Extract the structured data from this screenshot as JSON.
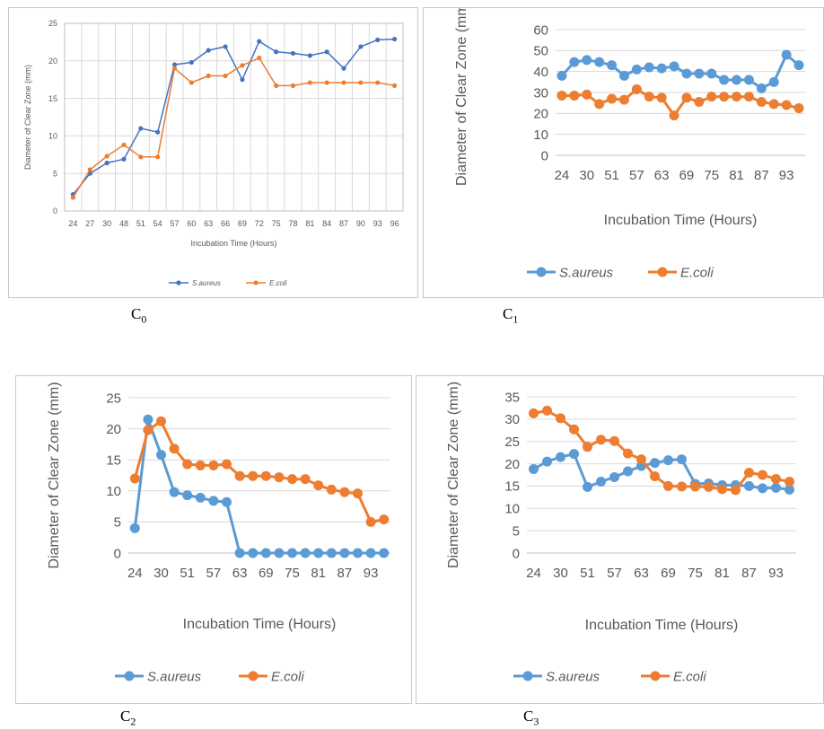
{
  "captions": [
    {
      "letter": "C",
      "sub": "0"
    },
    {
      "letter": "C",
      "sub": "1"
    },
    {
      "letter": "C",
      "sub": "2"
    },
    {
      "letter": "C",
      "sub": "3"
    }
  ],
  "chart_data": [
    {
      "type": "line",
      "xlabel": "Incubation Time (Hours)",
      "ylabel": "Diameter of Clear Zone (mm)",
      "ylim": [
        0,
        25
      ],
      "ystep": 5,
      "grid": "vertical",
      "categories": [
        "24",
        "27",
        "30",
        "48",
        "51",
        "54",
        "57",
        "60",
        "63",
        "66",
        "69",
        "72",
        "75",
        "78",
        "81",
        "84",
        "87",
        "90",
        "93",
        "96"
      ],
      "tick_labels": [
        "24",
        "27",
        "30",
        "48",
        "51",
        "54",
        "57",
        "60",
        "63",
        "66",
        "69",
        "72",
        "75",
        "78",
        "81",
        "84",
        "87",
        "90",
        "93",
        "96"
      ],
      "legend_position": "bottom",
      "series": [
        {
          "name": "S.aureus",
          "color": "#4472c4",
          "values": [
            2.2,
            5.0,
            6.4,
            6.9,
            11.0,
            10.5,
            19.5,
            19.8,
            21.4,
            21.9,
            17.5,
            22.6,
            21.2,
            21.0,
            20.7,
            21.2,
            19.0,
            21.9,
            22.8,
            22.9
          ]
        },
        {
          "name": "E.coli",
          "color": "#ed7d31",
          "values": [
            1.8,
            5.5,
            7.3,
            8.8,
            7.2,
            7.2,
            19.0,
            17.1,
            18.0,
            18.0,
            19.4,
            20.4,
            16.7,
            16.7,
            17.1,
            17.1,
            17.1,
            17.1,
            17.1,
            16.7
          ]
        }
      ]
    },
    {
      "type": "line",
      "xlabel": "Incubation Time (Hours)",
      "ylabel": "Diameter of Clear Zone (mm)",
      "ylim": [
        0,
        60
      ],
      "ystep": 10,
      "grid": "horizontal",
      "categories": [
        "24",
        "27",
        "30",
        "48",
        "51",
        "54",
        "57",
        "60",
        "63",
        "66",
        "69",
        "72",
        "75",
        "78",
        "81",
        "84",
        "87",
        "90",
        "93",
        "96"
      ],
      "tick_labels": [
        "24",
        "",
        "30",
        "",
        "51",
        "",
        "57",
        "",
        "63",
        "",
        "69",
        "",
        "75",
        "",
        "81",
        "",
        "87",
        "",
        "93",
        ""
      ],
      "legend_position": "bottom",
      "series": [
        {
          "name": "S.aureus",
          "color": "#5b9bd5",
          "values": [
            38,
            44.5,
            45.5,
            44.5,
            43,
            38,
            41,
            42,
            41.5,
            42.5,
            39,
            39,
            39,
            36,
            36,
            36,
            32,
            35,
            48,
            43
          ]
        },
        {
          "name": "E.coli",
          "color": "#ed7d31",
          "values": [
            28.5,
            28.5,
            29,
            24.5,
            27,
            26.5,
            31.5,
            28,
            27.5,
            19,
            27.5,
            25.5,
            28,
            28,
            28,
            28,
            25.5,
            24.5,
            24,
            22.5
          ]
        }
      ]
    },
    {
      "type": "line",
      "xlabel": "Incubation Time (Hours)",
      "ylabel": "Diameter of Clear Zone (mm)",
      "ylim": [
        0,
        25
      ],
      "ystep": 5,
      "grid": "horizontal",
      "categories": [
        "24",
        "27",
        "30",
        "48",
        "51",
        "54",
        "57",
        "60",
        "63",
        "66",
        "69",
        "72",
        "75",
        "78",
        "81",
        "84",
        "87",
        "90",
        "93",
        "96"
      ],
      "tick_labels": [
        "24",
        "",
        "30",
        "",
        "51",
        "",
        "57",
        "",
        "63",
        "",
        "69",
        "",
        "75",
        "",
        "81",
        "",
        "87",
        "",
        "93",
        ""
      ],
      "legend_position": "bottom",
      "series": [
        {
          "name": "S.aureus",
          "color": "#5b9bd5",
          "values": [
            4,
            21.5,
            15.8,
            9.8,
            9.3,
            8.9,
            8.4,
            8.2,
            0,
            0,
            0,
            0,
            0,
            0,
            0,
            0,
            0,
            0,
            0,
            0
          ]
        },
        {
          "name": "E.coli",
          "color": "#ed7d31",
          "values": [
            12,
            19.8,
            21.2,
            16.8,
            14.3,
            14.1,
            14.1,
            14.3,
            12.4,
            12.4,
            12.4,
            12.2,
            11.9,
            11.9,
            10.9,
            10.2,
            9.8,
            9.6,
            5,
            5.4
          ]
        }
      ]
    },
    {
      "type": "line",
      "xlabel": "Incubation Time (Hours)",
      "ylabel": "Diameter of Clear Zone (mm)",
      "ylim": [
        0,
        35
      ],
      "ystep": 5,
      "grid": "horizontal",
      "categories": [
        "24",
        "27",
        "30",
        "48",
        "51",
        "54",
        "57",
        "60",
        "63",
        "66",
        "69",
        "72",
        "75",
        "78",
        "81",
        "84",
        "87",
        "90",
        "93",
        "96"
      ],
      "tick_labels": [
        "24",
        "",
        "30",
        "",
        "51",
        "",
        "57",
        "",
        "63",
        "",
        "69",
        "",
        "75",
        "",
        "81",
        "",
        "87",
        "",
        "93",
        ""
      ],
      "legend_position": "bottom",
      "series": [
        {
          "name": "S.aureus",
          "color": "#5b9bd5",
          "values": [
            18.8,
            20.5,
            21.5,
            22.2,
            14.8,
            16,
            17,
            18.3,
            19.5,
            20.2,
            20.8,
            21,
            15.5,
            15.6,
            15.2,
            15.2,
            15,
            14.5,
            14.6,
            14.2
          ]
        },
        {
          "name": "E.coli",
          "color": "#ed7d31",
          "values": [
            31.3,
            31.9,
            30.2,
            27.7,
            23.8,
            25.4,
            25.1,
            22.3,
            21,
            17.2,
            15,
            14.9,
            14.9,
            14.8,
            14.3,
            14.1,
            18,
            17.5,
            16.6,
            16
          ]
        }
      ]
    }
  ]
}
